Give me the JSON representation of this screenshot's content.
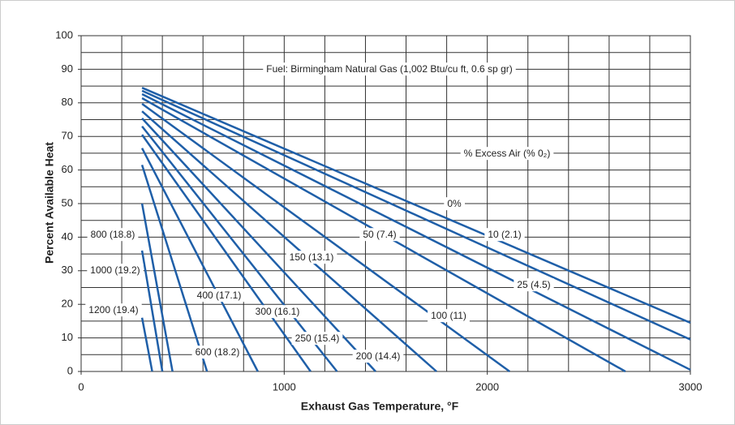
{
  "chart_data": {
    "type": "line",
    "annotations": [
      "Fuel: Birmingham Natural Gas (1,002 Btu/cu ft, 0.6 sp gr)",
      "% Excess Air (% 0₂)"
    ],
    "x_label": "Exhaust Gas Temperature, °F",
    "y_label": "Percent Available Heat",
    "xlim": [
      0,
      3000
    ],
    "ylim": [
      0,
      100
    ],
    "xticks": [
      0,
      1000,
      2000,
      3000
    ],
    "yticks": [
      0,
      10,
      20,
      30,
      40,
      50,
      60,
      70,
      80,
      90,
      100
    ],
    "xgrid": [
      200,
      400,
      600,
      800,
      1000,
      1200,
      1400,
      1600,
      1800,
      2000,
      2200,
      2400,
      2600,
      2800
    ],
    "ygrid": [
      5,
      10,
      15,
      20,
      25,
      30,
      35,
      40,
      45,
      50,
      55,
      60,
      65,
      70,
      75,
      80,
      85,
      90,
      95
    ],
    "color": "#1f5fa8",
    "series": [
      {
        "name": "0%",
        "x": [
          300,
          3000
        ],
        "values": [
          84.5,
          14.5
        ]
      },
      {
        "name": "10 (2.1)",
        "x": [
          300,
          3000
        ],
        "values": [
          83.6,
          9.5
        ]
      },
      {
        "name": "25 (4.5)",
        "x": [
          300,
          3000
        ],
        "values": [
          82.6,
          0.5
        ]
      },
      {
        "name": "50 (7.4)",
        "x": [
          300,
          2680
        ],
        "values": [
          81.4,
          0
        ]
      },
      {
        "name": "100 (11)",
        "x": [
          300,
          2110
        ],
        "values": [
          79.7,
          0
        ]
      },
      {
        "name": "150 (13.1)",
        "x": [
          300,
          1750
        ],
        "values": [
          77.5,
          0
        ]
      },
      {
        "name": "200 (14.4)",
        "x": [
          300,
          1450
        ],
        "values": [
          75.4,
          0
        ]
      },
      {
        "name": "250 (15.4)",
        "x": [
          300,
          1260
        ],
        "values": [
          73,
          0
        ]
      },
      {
        "name": "300 (16.1)",
        "x": [
          300,
          1130
        ],
        "values": [
          70.5,
          0
        ]
      },
      {
        "name": "400 (17.1)",
        "x": [
          300,
          870
        ],
        "values": [
          66.5,
          0
        ]
      },
      {
        "name": "600 (18.2)",
        "x": [
          300,
          620
        ],
        "values": [
          61.5,
          0
        ]
      },
      {
        "name": "800 (18.8)",
        "x": [
          300,
          450
        ],
        "values": [
          50,
          0
        ]
      },
      {
        "name": "1000 (19.2)",
        "x": [
          300,
          400
        ],
        "values": [
          36,
          0
        ]
      },
      {
        "name": "1200 (19.4)",
        "x": [
          300,
          350
        ],
        "values": [
          16,
          0
        ]
      }
    ]
  }
}
